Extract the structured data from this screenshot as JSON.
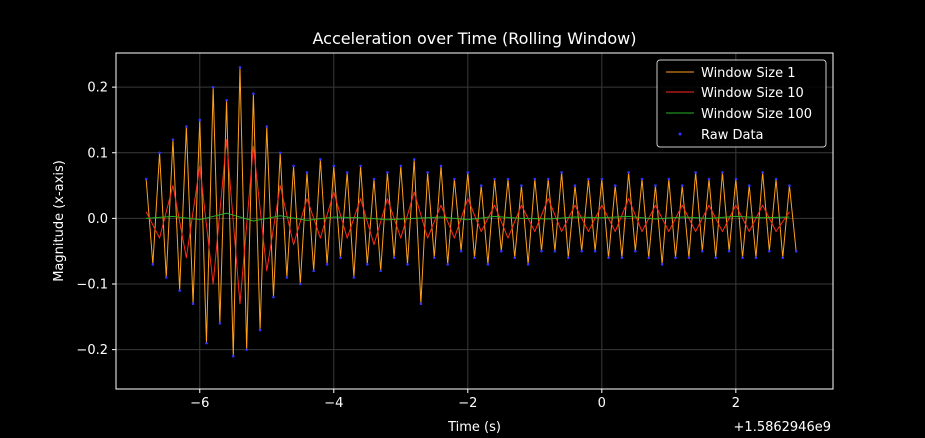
{
  "chart_data": {
    "type": "line",
    "title": "Acceleration over Time (Rolling Window)",
    "xlabel": "Time (s)",
    "ylabel": "Magnitude (x-axis)",
    "x_offset_label": "+1.5862946e9",
    "xlim": [
      -7.25,
      3.45
    ],
    "ylim": [
      -0.26,
      0.252
    ],
    "xticks": [
      -6,
      -4,
      -2,
      0,
      2
    ],
    "xtick_labels": [
      "−6",
      "−4",
      "−2",
      "0",
      "2"
    ],
    "yticks": [
      0.2,
      0.1,
      0.0,
      -0.1,
      -0.2
    ],
    "ytick_labels": [
      "0.2",
      "0.1",
      "0.0",
      "−0.1",
      "−0.2"
    ],
    "grid": true,
    "legend_position": "top-right",
    "series": [
      {
        "name": "Window Size 1",
        "color": "#ff9f1c",
        "x": [
          -6.8,
          -6.7,
          -6.6,
          -6.5,
          -6.4,
          -6.3,
          -6.2,
          -6.1,
          -6.0,
          -5.9,
          -5.8,
          -5.7,
          -5.6,
          -5.5,
          -5.4,
          -5.3,
          -5.2,
          -5.1,
          -5.0,
          -4.9,
          -4.8,
          -4.7,
          -4.6,
          -4.5,
          -4.4,
          -4.3,
          -4.2,
          -4.1,
          -4.0,
          -3.9,
          -3.8,
          -3.7,
          -3.6,
          -3.5,
          -3.4,
          -3.3,
          -3.2,
          -3.1,
          -3.0,
          -2.9,
          -2.8,
          -2.7,
          -2.6,
          -2.5,
          -2.4,
          -2.3,
          -2.2,
          -2.1,
          -2.0,
          -1.9,
          -1.8,
          -1.7,
          -1.6,
          -1.5,
          -1.4,
          -1.3,
          -1.2,
          -1.1,
          -1.0,
          -0.9,
          -0.8,
          -0.7,
          -0.6,
          -0.5,
          -0.4,
          -0.3,
          -0.2,
          -0.1,
          0.0,
          0.1,
          0.2,
          0.3,
          0.4,
          0.5,
          0.6,
          0.7,
          0.8,
          0.9,
          1.0,
          1.1,
          1.2,
          1.3,
          1.4,
          1.5,
          1.6,
          1.7,
          1.8,
          1.9,
          2.0,
          2.1,
          2.2,
          2.3,
          2.4,
          2.5,
          2.6,
          2.7,
          2.8,
          2.9
        ],
        "values": [
          0.06,
          -0.07,
          0.1,
          -0.09,
          0.12,
          -0.11,
          0.14,
          -0.13,
          0.15,
          -0.19,
          0.2,
          -0.16,
          0.18,
          -0.21,
          0.23,
          -0.2,
          0.19,
          -0.17,
          0.14,
          -0.12,
          0.1,
          -0.09,
          0.08,
          -0.1,
          0.07,
          -0.08,
          0.09,
          -0.07,
          0.08,
          -0.06,
          0.07,
          -0.09,
          0.08,
          -0.07,
          0.06,
          -0.08,
          0.07,
          -0.06,
          0.08,
          -0.07,
          0.09,
          -0.13,
          0.07,
          -0.06,
          0.08,
          -0.07,
          0.06,
          -0.05,
          0.07,
          -0.06,
          0.05,
          -0.07,
          0.06,
          -0.05,
          0.06,
          -0.06,
          0.05,
          -0.07,
          0.06,
          -0.05,
          0.06,
          -0.05,
          0.07,
          -0.06,
          0.05,
          -0.05,
          0.06,
          -0.05,
          0.06,
          -0.06,
          0.05,
          -0.06,
          0.07,
          -0.05,
          0.06,
          -0.06,
          0.05,
          -0.07,
          0.06,
          -0.06,
          0.05,
          -0.06,
          0.07,
          -0.05,
          0.06,
          -0.06,
          0.07,
          -0.05,
          0.06,
          -0.06,
          0.05,
          -0.06,
          0.07,
          -0.05,
          0.06,
          -0.06,
          0.05,
          -0.05
        ]
      },
      {
        "name": "Window Size 10",
        "color": "#ff2a1a",
        "x": [
          -6.8,
          -6.6,
          -6.4,
          -6.2,
          -6.0,
          -5.8,
          -5.6,
          -5.4,
          -5.2,
          -5.0,
          -4.8,
          -4.6,
          -4.4,
          -4.2,
          -4.0,
          -3.8,
          -3.6,
          -3.4,
          -3.2,
          -3.0,
          -2.8,
          -2.6,
          -2.4,
          -2.2,
          -2.0,
          -1.8,
          -1.6,
          -1.4,
          -1.2,
          -1.0,
          -0.8,
          -0.6,
          -0.4,
          -0.2,
          0.0,
          0.2,
          0.4,
          0.6,
          0.8,
          1.0,
          1.2,
          1.4,
          1.6,
          1.8,
          2.0,
          2.2,
          2.4,
          2.6,
          2.8
        ],
        "values": [
          0.01,
          -0.03,
          0.05,
          -0.06,
          0.08,
          -0.1,
          0.12,
          -0.13,
          0.11,
          -0.08,
          0.05,
          -0.04,
          0.03,
          -0.03,
          0.04,
          -0.03,
          0.03,
          -0.04,
          0.03,
          -0.03,
          0.04,
          -0.03,
          0.02,
          -0.03,
          0.03,
          -0.02,
          0.02,
          -0.03,
          0.02,
          -0.02,
          0.03,
          -0.02,
          0.02,
          -0.02,
          0.02,
          -0.02,
          0.03,
          -0.02,
          0.02,
          -0.02,
          0.02,
          -0.02,
          0.02,
          -0.02,
          0.02,
          -0.02,
          0.02,
          -0.02,
          0.01
        ]
      },
      {
        "name": "Window Size 100",
        "color": "#22b322",
        "x": [
          -6.8,
          -6.4,
          -6.0,
          -5.6,
          -5.2,
          -4.8,
          -4.4,
          -4.0,
          -3.6,
          -3.2,
          -2.8,
          -2.4,
          -2.0,
          -1.6,
          -1.2,
          -0.8,
          -0.4,
          0.0,
          0.4,
          0.8,
          1.2,
          1.6,
          2.0,
          2.4,
          2.8
        ],
        "values": [
          0.0,
          0.003,
          -0.002,
          0.008,
          -0.004,
          0.004,
          -0.003,
          0.002,
          0.001,
          -0.002,
          0.0,
          0.002,
          -0.002,
          0.003,
          0.0,
          -0.001,
          0.002,
          0.001,
          0.003,
          -0.001,
          0.002,
          0.0,
          0.003,
          0.001,
          0.002
        ]
      },
      {
        "name": "Raw Data",
        "color": "#3333ff",
        "style": "scatter",
        "x": [
          -6.8,
          -6.7,
          -6.6,
          -6.5,
          -6.4,
          -6.3,
          -6.2,
          -6.1,
          -6.0,
          -5.9,
          -5.8,
          -5.7,
          -5.6,
          -5.5,
          -5.4,
          -5.3,
          -5.2,
          -5.1,
          -5.0,
          -4.9,
          -4.8,
          -4.7,
          -4.6,
          -4.5,
          -4.4,
          -4.3,
          -4.2,
          -4.1,
          -4.0,
          -3.9,
          -3.8,
          -3.7,
          -3.6,
          -3.5,
          -3.4,
          -3.3,
          -3.2,
          -3.1,
          -3.0,
          -2.9,
          -2.8,
          -2.7,
          -2.6,
          -2.5,
          -2.4,
          -2.3,
          -2.2,
          -2.1,
          -2.0,
          -1.9,
          -1.8,
          -1.7,
          -1.6,
          -1.5,
          -1.4,
          -1.3,
          -1.2,
          -1.1,
          -1.0,
          -0.9,
          -0.8,
          -0.7,
          -0.6,
          -0.5,
          -0.4,
          -0.3,
          -0.2,
          -0.1,
          0.0,
          0.1,
          0.2,
          0.3,
          0.4,
          0.5,
          0.6,
          0.7,
          0.8,
          0.9,
          1.0,
          1.1,
          1.2,
          1.3,
          1.4,
          1.5,
          1.6,
          1.7,
          1.8,
          1.9,
          2.0,
          2.1,
          2.2,
          2.3,
          2.4,
          2.5,
          2.6,
          2.7,
          2.8,
          2.9
        ],
        "values": [
          0.06,
          -0.07,
          0.1,
          -0.09,
          0.12,
          -0.11,
          0.14,
          -0.13,
          0.15,
          -0.19,
          0.2,
          -0.16,
          0.18,
          -0.21,
          0.23,
          -0.2,
          0.19,
          -0.17,
          0.14,
          -0.12,
          0.1,
          -0.09,
          0.08,
          -0.1,
          0.07,
          -0.08,
          0.09,
          -0.07,
          0.08,
          -0.06,
          0.07,
          -0.09,
          0.08,
          -0.07,
          0.06,
          -0.08,
          0.07,
          -0.06,
          0.08,
          -0.07,
          0.09,
          -0.13,
          0.07,
          -0.06,
          0.08,
          -0.07,
          0.06,
          -0.05,
          0.07,
          -0.06,
          0.05,
          -0.07,
          0.06,
          -0.05,
          0.06,
          -0.06,
          0.05,
          -0.07,
          0.06,
          -0.05,
          0.06,
          -0.05,
          0.07,
          -0.06,
          0.05,
          -0.05,
          0.06,
          -0.05,
          0.06,
          -0.06,
          0.05,
          -0.06,
          0.07,
          -0.05,
          0.06,
          -0.06,
          0.05,
          -0.07,
          0.06,
          -0.06,
          0.05,
          -0.06,
          0.07,
          -0.05,
          0.06,
          -0.06,
          0.07,
          -0.05,
          0.06,
          -0.06,
          0.05,
          -0.06,
          0.07,
          -0.05,
          0.06,
          -0.06,
          0.05,
          -0.05
        ]
      }
    ]
  }
}
